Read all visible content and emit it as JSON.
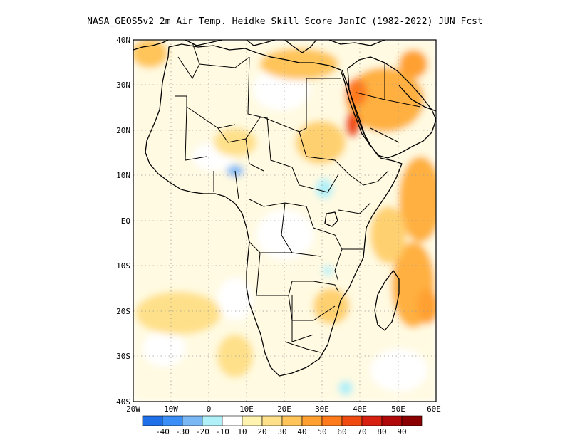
{
  "title": "NASA_GEOS5v2  2m Air Temp. Heidke Skill Score JanIC (1982-2022) JUN Fcst",
  "lat_labels": [
    "40N",
    "30N",
    "20N",
    "10N",
    "EQ",
    "10S",
    "20S",
    "30S",
    "40S"
  ],
  "lon_labels": [
    "20W",
    "10W",
    "0",
    "10E",
    "20E",
    "30E",
    "40E",
    "50E",
    "60E"
  ],
  "colorbar": {
    "tick_labels": [
      "-40",
      "-30",
      "-20",
      "-10",
      "10",
      "20",
      "30",
      "40",
      "50",
      "60",
      "70",
      "80",
      "90"
    ],
    "colors": [
      "#1f6fe8",
      "#3a8ef5",
      "#7ab8f5",
      "#b0f0f8",
      "#ffffff",
      "#fff3b0",
      "#ffe08a",
      "#ffc45a",
      "#ffa030",
      "#ff7a1a",
      "#f04a10",
      "#d72010",
      "#b00808",
      "#8a0000"
    ]
  },
  "map_extent": {
    "lon_range": [
      -20,
      60
    ],
    "lat_range": [
      -40,
      40
    ]
  }
}
